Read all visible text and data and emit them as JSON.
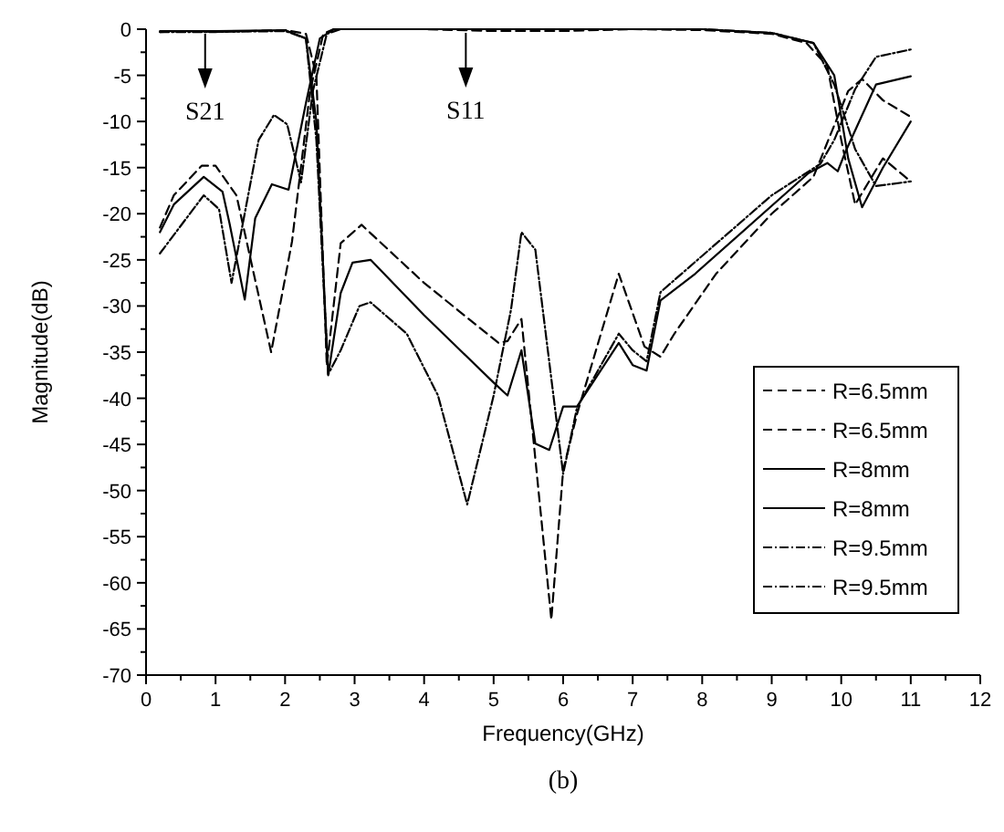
{
  "chart_data": {
    "type": "line",
    "xlabel": "Frequency(GHz)",
    "ylabel": "Magnitude(dB)",
    "xlim": [
      0,
      12
    ],
    "ylim": [
      -70,
      0
    ],
    "xticks": [
      0,
      {
        "value": 0.5,
        "label": null
      },
      1,
      {
        "value": 1.5,
        "label": null
      },
      2,
      {
        "value": 2.5,
        "label": null
      },
      3,
      {
        "value": 3.5,
        "label": null
      },
      4,
      {
        "value": 4.5,
        "label": null
      },
      5,
      {
        "value": 5.5,
        "label": null
      },
      6,
      {
        "value": 6.5,
        "label": null
      },
      7,
      {
        "value": 7.5,
        "label": null
      },
      8,
      {
        "value": 8.5,
        "label": null
      },
      9,
      {
        "value": 9.5,
        "label": null
      },
      10,
      {
        "value": 10.5,
        "label": null
      },
      11,
      {
        "value": 11.5,
        "label": null
      },
      12
    ],
    "yticks": [
      0,
      {
        "value": -2.5,
        "label": null
      },
      -5,
      {
        "value": -7.5,
        "label": null
      },
      -10,
      {
        "value": -12.5,
        "label": null
      },
      -15,
      {
        "value": -17.5,
        "label": null
      },
      -20,
      {
        "value": -22.5,
        "label": null
      },
      -25,
      {
        "value": -27.5,
        "label": null
      },
      -30,
      {
        "value": -32.5,
        "label": null
      },
      -35,
      {
        "value": -37.5,
        "label": null
      },
      -40,
      {
        "value": -42.5,
        "label": null
      },
      -45,
      {
        "value": -47.5,
        "label": null
      },
      -50,
      {
        "value": -52.5,
        "label": null
      },
      -55,
      {
        "value": -57.5,
        "label": null
      },
      -60,
      {
        "value": -62.5,
        "label": null
      },
      -65,
      {
        "value": -67.5,
        "label": null
      },
      -70
    ],
    "grid": false,
    "legend": "right",
    "marker": "none",
    "series": [
      {
        "name": "R=6.5mm",
        "color": "#000000",
        "line_style": "dashed",
        "x": [
          0.2,
          0.6,
          1.0,
          1.5,
          2.0,
          2.3,
          2.45,
          2.6,
          2.8,
          3.1,
          4.0,
          5.07,
          5.2,
          5.4,
          5.83,
          6.0,
          6.2,
          6.8,
          7.17,
          7.4,
          7.6,
          8.2,
          9.0,
          9.6,
          10.1,
          10.3,
          10.6,
          11.0
        ],
        "values": [
          -0.3,
          -0.2,
          -0.3,
          -0.2,
          -0.1,
          -0.5,
          -5,
          -36.5,
          -23.2,
          -21.2,
          -27.5,
          -34,
          -33.8,
          -31.4,
          -64,
          -47.8,
          -41.7,
          -26.5,
          -34.4,
          -35.5,
          -33,
          -26.5,
          -20,
          -16,
          -6.7,
          -5.4,
          -7.7,
          -9.5
        ]
      },
      {
        "name": "R=6.5mm",
        "color": "#000000",
        "line_style": "dashed",
        "x": [
          0.2,
          0.4,
          0.8,
          1.0,
          1.3,
          1.8,
          2.1,
          2.36,
          2.55,
          2.7,
          3,
          4,
          5,
          6,
          7,
          8,
          9,
          9.5,
          9.8,
          10.0,
          10.2,
          10.6,
          11.0
        ],
        "values": [
          -21.5,
          -18,
          -14.8,
          -14.8,
          -18,
          -35,
          -23,
          -6.7,
          -0.5,
          0,
          0,
          0,
          -0.2,
          -0.2,
          0,
          -0.1,
          -0.5,
          -1.5,
          -4,
          -12,
          -19,
          -14,
          -16.5
        ]
      },
      {
        "name": "R=8mm",
        "color": "#000000",
        "line_style": "solid",
        "x": [
          0.2,
          1,
          2,
          2.3,
          2.45,
          2.62,
          2.8,
          2.97,
          3.23,
          4,
          5.0,
          5.2,
          5.4,
          5.6,
          5.8,
          6.0,
          6.2,
          6.8,
          7.0,
          7.2,
          7.4,
          7.9,
          9.53,
          9.8,
          9.95,
          10.06,
          10.5,
          11
        ],
        "values": [
          -0.2,
          -0.2,
          -0.1,
          -1,
          -10,
          -37.5,
          -28.6,
          -25.3,
          -25,
          -31,
          -38.3,
          -39.7,
          -34.8,
          -44.9,
          -45.6,
          -40.9,
          -40.9,
          -34,
          -36.4,
          -37,
          -29.4,
          -26.5,
          -15.6,
          -14.5,
          -15.4,
          -13.3,
          -6,
          -5.1
        ]
      },
      {
        "name": "R=8mm",
        "color": "#000000",
        "line_style": "solid",
        "x": [
          0.2,
          0.4,
          0.83,
          1.1,
          1.2,
          1.42,
          1.57,
          1.81,
          2.05,
          2.3,
          2.5,
          2.7,
          4,
          6,
          8,
          9,
          9.6,
          9.9,
          10.1,
          10.3,
          10.6,
          11
        ],
        "values": [
          -22,
          -19,
          -16,
          -17.6,
          -21,
          -29.3,
          -20.5,
          -16.8,
          -17.4,
          -8,
          -1,
          0,
          0,
          0,
          0,
          -0.4,
          -1.5,
          -5,
          -14,
          -19.3,
          -15,
          -10
        ]
      },
      {
        "name": "R=9.5mm",
        "color": "#000000",
        "line_style": "dotted",
        "x": [
          0.2,
          1,
          2,
          2.3,
          2.45,
          2.62,
          2.8,
          3.07,
          3.23,
          3.75,
          4.2,
          4.62,
          5.0,
          5.25,
          5.4,
          5.6,
          6.0,
          6.2,
          6.8,
          7.0,
          7.2,
          7.4,
          9.0,
          9.7,
          9.9,
          10.2,
          10.5,
          11
        ],
        "values": [
          -0.3,
          -0.3,
          -0.2,
          -1,
          -12,
          -37.4,
          -34.8,
          -30,
          -29.6,
          -33,
          -39.7,
          -51.5,
          -39.7,
          -30.4,
          -22,
          -23.9,
          -48.2,
          -41,
          -33,
          -34.8,
          -36,
          -28.5,
          -18,
          -14.6,
          -12,
          -6.5,
          -3,
          -2.2
        ]
      },
      {
        "name": "R=9.5mm",
        "color": "#000000",
        "line_style": "dotted",
        "x": [
          0.2,
          0.83,
          1.05,
          1.23,
          1.62,
          1.84,
          2.03,
          2.23,
          2.4,
          2.6,
          2.8,
          4,
          6,
          8,
          9,
          9.6,
          9.9,
          10.2,
          10.5,
          11
        ],
        "values": [
          -24.3,
          -18,
          -19.5,
          -27.5,
          -12,
          -9.3,
          -10.3,
          -16.6,
          -6.7,
          -0.5,
          0,
          0,
          0,
          0,
          -0.4,
          -1.5,
          -6,
          -13,
          -17,
          -16.5
        ]
      }
    ],
    "annotations": [
      {
        "text": "S21",
        "x": 0.85,
        "y": -0.3
      },
      {
        "text": "S11",
        "x": 4.6,
        "y": -0.2
      },
      "(b)"
    ]
  }
}
